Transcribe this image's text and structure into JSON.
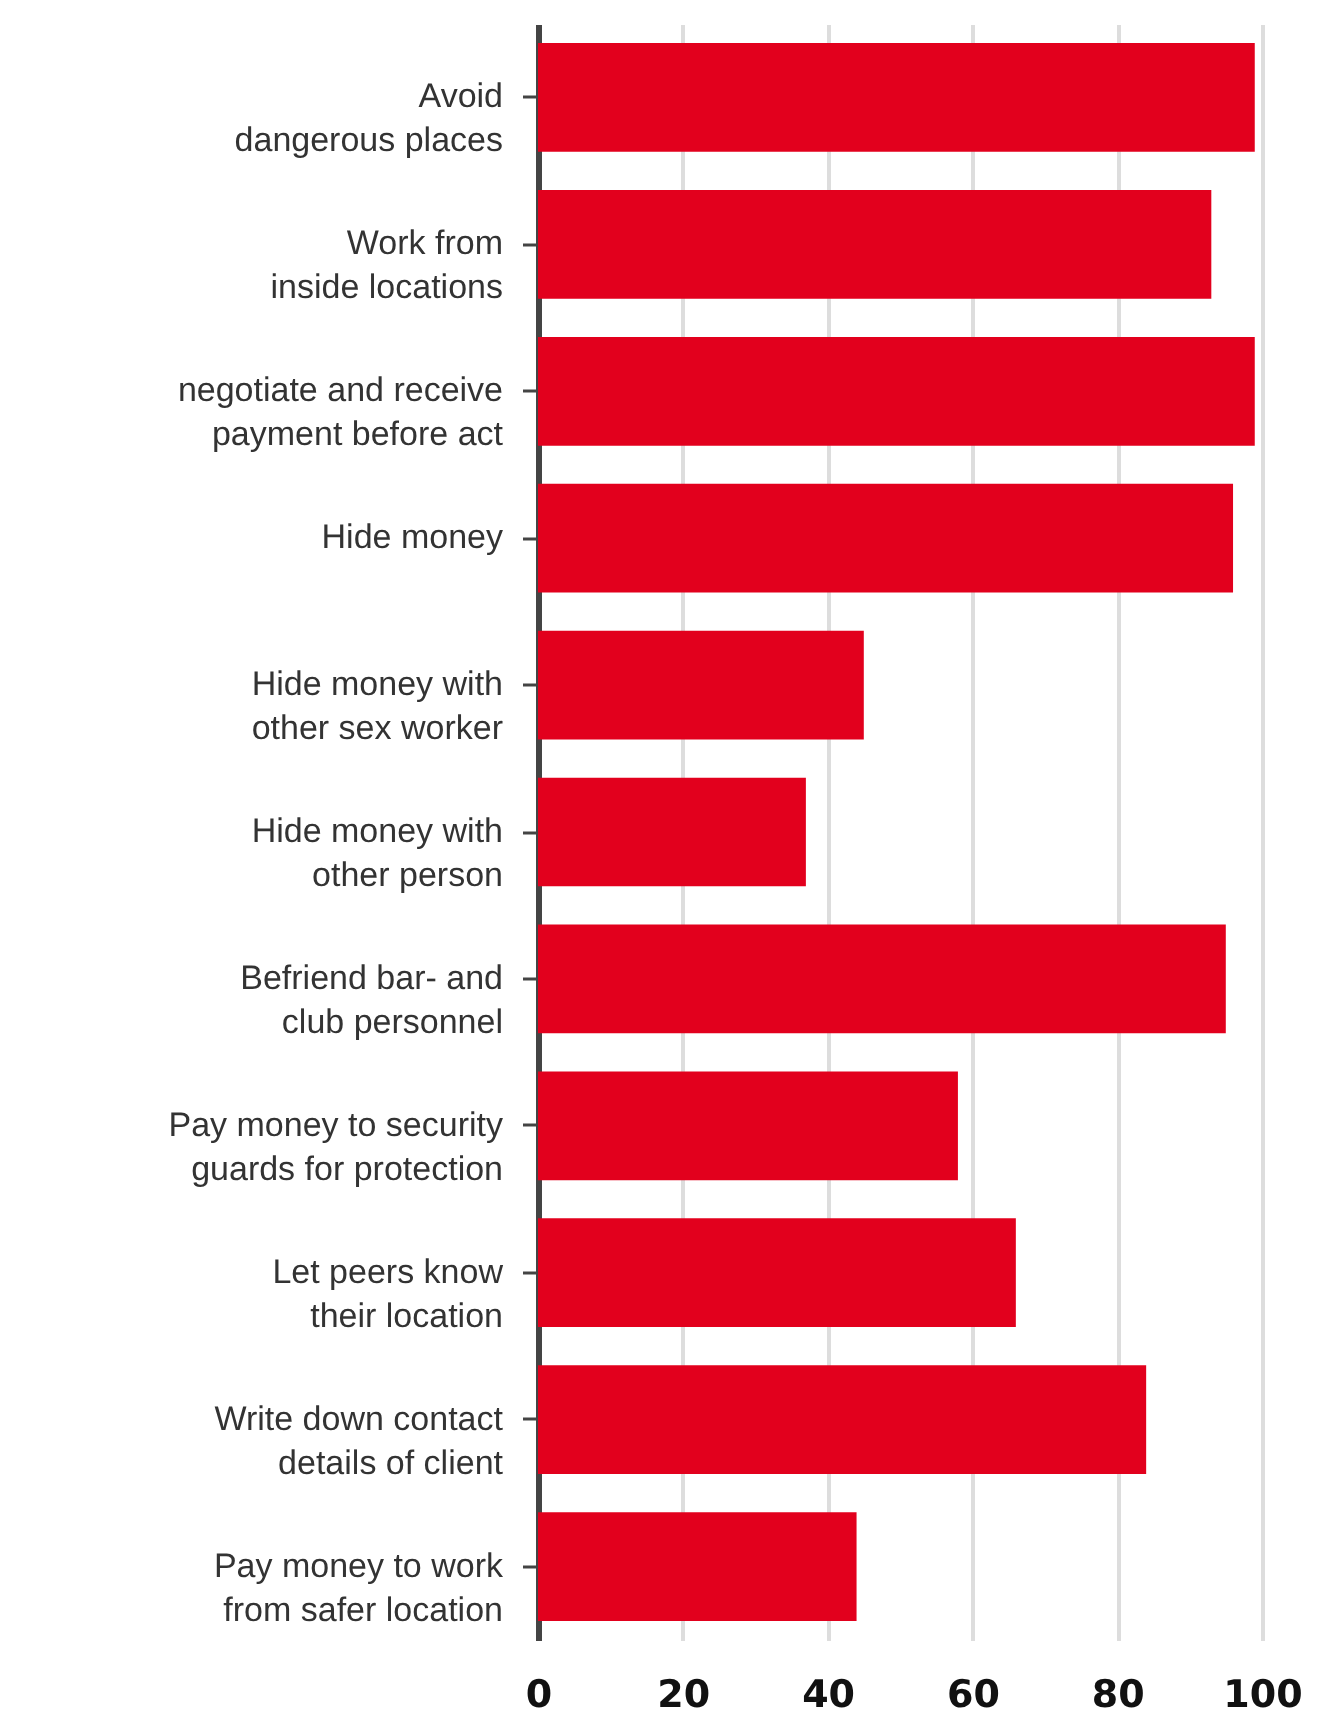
{
  "chart_data": {
    "type": "bar",
    "orientation": "horizontal",
    "categories": [
      "Avoid\ndangerous places",
      "Work from\ninside locations",
      "negotiate and receive\npayment before act",
      "Hide money",
      "Hide money with\nother sex worker",
      "Hide money with\nother person",
      "Befriend bar- and\nclub personnel",
      "Pay money to security\nguards for protection",
      "Let peers know\ntheir location",
      "Write down contact\ndetails of client",
      "Pay money to work\nfrom safer location"
    ],
    "values": [
      99,
      93,
      99,
      96,
      45,
      37,
      95,
      58,
      66,
      84,
      44
    ],
    "color": "#e2001d",
    "xlim": [
      0,
      100
    ],
    "xticks": [
      0,
      20,
      40,
      60,
      80,
      100
    ],
    "grid": "x"
  }
}
